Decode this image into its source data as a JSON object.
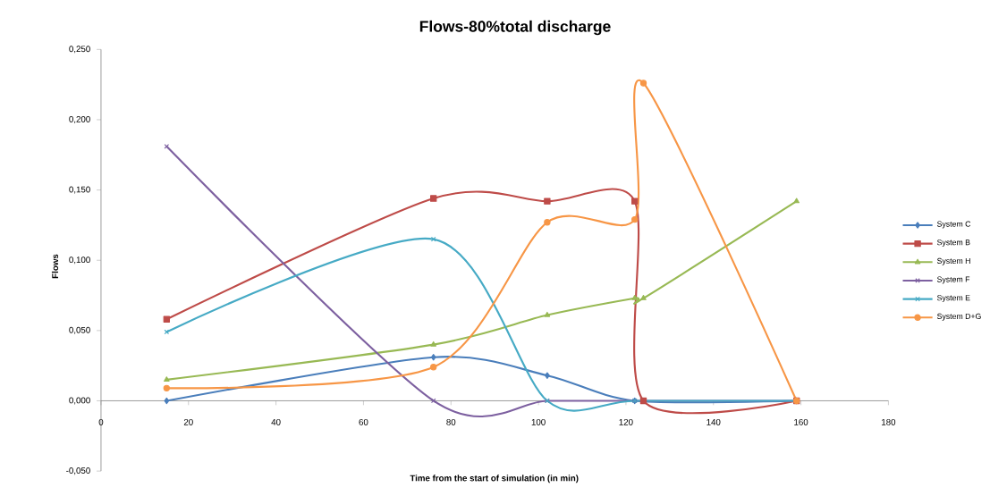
{
  "chart_data": {
    "type": "line",
    "title": "Flows-80%total discharge",
    "xlabel": "Time from the start of simulation (in min)",
    "ylabel": "Flows",
    "xlim": [
      0,
      180
    ],
    "xticks": [
      0,
      20,
      40,
      60,
      80,
      100,
      120,
      140,
      160,
      180
    ],
    "ylim": [
      -0.05,
      0.25
    ],
    "yticks": [
      {
        "value": -0.05,
        "label": "-0,050"
      },
      {
        "value": 0,
        "label": "0,000"
      },
      {
        "value": 0.05,
        "label": "0,050"
      },
      {
        "value": 0.1,
        "label": "0,100"
      },
      {
        "value": 0.15,
        "label": "0,150"
      },
      {
        "value": 0.2,
        "label": "0,200"
      },
      {
        "value": 0.25,
        "label": "0,250"
      }
    ],
    "legend": "right",
    "line_style": "solid",
    "series": [
      {
        "name": "System C",
        "color": "#4a7ebb",
        "marker": "diamond",
        "x": [
          15,
          76,
          102,
          122,
          159
        ],
        "values": [
          0,
          0.031,
          0.018,
          0,
          0
        ]
      },
      {
        "name": "System B",
        "color": "#be4b48",
        "marker": "square",
        "x": [
          15,
          76,
          102,
          122,
          124,
          159
        ],
        "values": [
          0.058,
          0.144,
          0.142,
          0.142,
          0,
          0
        ]
      },
      {
        "name": "System H",
        "color": "#98b954",
        "marker": "triangle",
        "x": [
          15,
          76,
          102,
          122,
          124,
          159
        ],
        "values": [
          0.015,
          0.04,
          0.061,
          0.073,
          0.073,
          0.142
        ]
      },
      {
        "name": "System F",
        "color": "#7d60a0",
        "marker": "cross",
        "x": [
          15,
          76,
          102,
          122,
          159
        ],
        "values": [
          0.181,
          0,
          0,
          0,
          0
        ]
      },
      {
        "name": "System E",
        "color": "#46aac5",
        "marker": "cross",
        "x": [
          15,
          76,
          102,
          122,
          159
        ],
        "values": [
          0.049,
          0.115,
          0,
          0,
          0
        ]
      },
      {
        "name": "System D+G",
        "color": "#f79646",
        "marker": "circle",
        "x": [
          15,
          76,
          102,
          122,
          124,
          159
        ],
        "values": [
          0.009,
          0.024,
          0.127,
          0.129,
          0.226,
          0
        ]
      }
    ]
  }
}
